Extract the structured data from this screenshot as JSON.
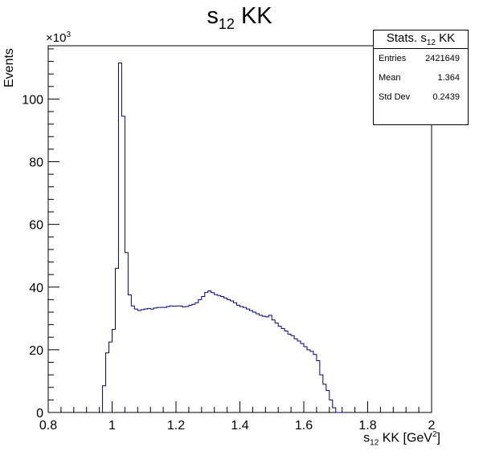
{
  "chart_data": {
    "type": "histogram",
    "title_main": "s",
    "title_sub": "12",
    "title_rest": " KK",
    "xlabel_main": "s",
    "xlabel_sub": "12",
    "xlabel_mid": " KK [GeV",
    "xlabel_sup": "2",
    "xlabel_end": "]",
    "ylabel": "Events",
    "y_multiplier_base": "×10",
    "y_multiplier_exp": "3",
    "xlim": [
      0.8,
      2.0
    ],
    "ylim": [
      0,
      117
    ],
    "x_ticks": [
      "0.8",
      "1",
      "1.2",
      "1.4",
      "1.6",
      "1.8",
      "2"
    ],
    "x_tick_values": [
      0.8,
      1.0,
      1.2,
      1.4,
      1.6,
      1.8,
      2.0
    ],
    "y_ticks": [
      "0",
      "20",
      "40",
      "60",
      "80",
      "100"
    ],
    "y_tick_values": [
      0,
      20,
      40,
      60,
      80,
      100
    ],
    "bin_width": 0.01,
    "bin_edges_start": 0.96,
    "bin_values": [
      0,
      8.5,
      19,
      22.5,
      26.5,
      46,
      111.5,
      94.5,
      51,
      37.5,
      34,
      33,
      32.5,
      32.8,
      33,
      33.2,
      33,
      33.3,
      33.5,
      33.5,
      33.5,
      33.8,
      34,
      33.9,
      34,
      34,
      33.7,
      33.8,
      34.2,
      34.5,
      35,
      36,
      37,
      38.3,
      38.8,
      38.2,
      37.6,
      37.3,
      37,
      36.5,
      36,
      35.6,
      35,
      34.2,
      33.8,
      33.5,
      33,
      32.5,
      32,
      31.5,
      31,
      30.7,
      30.5,
      31,
      29.5,
      28.5,
      27.5,
      26.8,
      26,
      25,
      24.5,
      23.5,
      22.8,
      22,
      21,
      20,
      19.5,
      18.5,
      16.5,
      12,
      9,
      7,
      4,
      1.5,
      0,
      0
    ],
    "stats": {
      "title_main": "Stats. s",
      "title_sub": "12",
      "title_rest": " KK",
      "entries_label": "Entries",
      "entries_value": "2421649",
      "mean_label": "Mean",
      "mean_value": "1.364",
      "stddev_label": "Std Dev",
      "stddev_value": "0.2439"
    },
    "line_color": "#000080",
    "axis_color": "#000000",
    "grid": false
  }
}
